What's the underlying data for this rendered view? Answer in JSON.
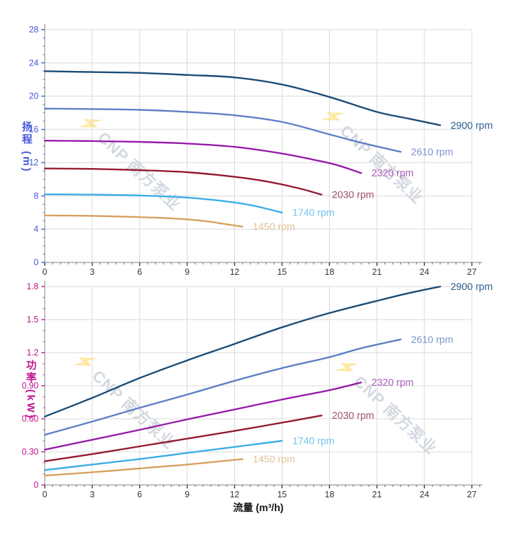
{
  "watermark": {
    "logo": "⚡",
    "text": "CNP 南方泵业",
    "color": "rgba(150,164,184,0.42)"
  },
  "chart_data": [
    {
      "type": "line",
      "title": "",
      "xlabel": "",
      "ylabel": "扬程 (m)",
      "xlim": [
        0,
        27
      ],
      "ylim": [
        0,
        28
      ],
      "xticks": [
        0,
        3,
        6,
        9,
        12,
        15,
        18,
        21,
        24,
        27
      ],
      "xtick_labels": [
        "0",
        "3",
        "6",
        "9",
        "12",
        "15",
        "18",
        "21",
        "24",
        "27"
      ],
      "yticks": [
        0,
        4,
        8,
        12,
        16,
        20,
        24,
        28
      ],
      "ytick_labels": [
        "0",
        "4",
        "8",
        "12",
        "16",
        "20",
        "24",
        "28"
      ],
      "x_minor_step": 0.5,
      "y_minor_step": 1,
      "axis_color": "#4456d8",
      "xtick_color": "#333333",
      "grid_color": "#d8d8d8",
      "grid": true,
      "legend_position": "at-line-end",
      "series": [
        {
          "name": "2900 rpm",
          "color": "#1a4a75",
          "label_color": "#2f5f8f",
          "x": [
            0,
            3,
            6,
            9,
            12,
            15,
            18,
            21,
            23,
            25
          ],
          "y": [
            23.0,
            22.9,
            22.8,
            22.55,
            22.25,
            21.4,
            19.9,
            18.1,
            17.3,
            16.5
          ]
        },
        {
          "name": "2610 rpm",
          "color": "#5d7ec5",
          "label_color": "#7e97cf",
          "x": [
            0,
            3,
            6,
            9,
            12,
            15,
            18,
            20,
            22.5
          ],
          "y": [
            18.5,
            18.45,
            18.35,
            18.1,
            17.7,
            16.9,
            15.4,
            14.4,
            13.3
          ]
        },
        {
          "name": "2320 rpm",
          "color": "#951ba8",
          "label_color": "#a85cba",
          "x": [
            0,
            3,
            6,
            9,
            12,
            15,
            17,
            18.5,
            20
          ],
          "y": [
            14.65,
            14.6,
            14.5,
            14.3,
            13.9,
            13.1,
            12.35,
            11.7,
            10.75
          ]
        },
        {
          "name": "2030 rpm",
          "color": "#94182f",
          "label_color": "#a25568",
          "x": [
            0,
            3,
            6,
            9,
            12,
            14,
            16,
            17.5
          ],
          "y": [
            11.3,
            11.25,
            11.1,
            10.85,
            10.3,
            9.75,
            8.95,
            8.15
          ]
        },
        {
          "name": "1740 rpm",
          "color": "#39ade6",
          "label_color": "#74c4ed",
          "x": [
            0,
            3,
            6,
            9,
            11,
            13,
            15
          ],
          "y": [
            8.2,
            8.15,
            8.05,
            7.8,
            7.45,
            6.9,
            6.0
          ]
        },
        {
          "name": "1450 rpm",
          "color": "#d79f5b",
          "label_color": "#e3c193",
          "x": [
            0,
            3,
            6,
            8,
            10,
            12.5
          ],
          "y": [
            5.65,
            5.6,
            5.45,
            5.3,
            5.0,
            4.3
          ]
        }
      ]
    },
    {
      "type": "line",
      "title": "",
      "xlabel": "流量 (m³/h)",
      "ylabel": "功率 (kW)",
      "xlim": [
        0,
        27
      ],
      "ylim": [
        0,
        1.8
      ],
      "xticks": [
        0,
        3,
        6,
        9,
        12,
        15,
        18,
        21,
        24,
        27
      ],
      "xtick_labels": [
        "0",
        "3",
        "6",
        "9",
        "12",
        "15",
        "18",
        "21",
        "24",
        "27"
      ],
      "yticks": [
        0,
        0.3,
        0.6,
        0.9,
        1.2,
        1.5,
        1.8
      ],
      "ytick_labels": [
        "0",
        "0.30",
        "0.60",
        "0.90",
        "1.2",
        "1.5",
        "1.8"
      ],
      "x_minor_step": 0.5,
      "y_minor_step": 0.1,
      "axis_color": "#c2138f",
      "xtick_color": "#333333",
      "grid_color": "#d8d8d8",
      "grid": true,
      "legend_position": "at-line-end",
      "series": [
        {
          "name": "2900 rpm",
          "color": "#1a4a75",
          "label_color": "#2f5f8f",
          "x": [
            0,
            3,
            6,
            9,
            12,
            15,
            18,
            21,
            23,
            25
          ],
          "y": [
            0.62,
            0.79,
            0.97,
            1.13,
            1.28,
            1.43,
            1.56,
            1.67,
            1.74,
            1.8
          ]
        },
        {
          "name": "2610 rpm",
          "color": "#5d7ec5",
          "label_color": "#7e97cf",
          "x": [
            0,
            3,
            6,
            9,
            12,
            15,
            18,
            20,
            22.5
          ],
          "y": [
            0.455,
            0.575,
            0.7,
            0.82,
            0.945,
            1.06,
            1.16,
            1.24,
            1.32
          ]
        },
        {
          "name": "2320 rpm",
          "color": "#951ba8",
          "label_color": "#a85cba",
          "x": [
            0,
            3,
            6,
            9,
            12,
            15,
            18,
            20
          ],
          "y": [
            0.32,
            0.41,
            0.5,
            0.595,
            0.685,
            0.775,
            0.86,
            0.93
          ]
        },
        {
          "name": "2030 rpm",
          "color": "#94182f",
          "label_color": "#a25568",
          "x": [
            0,
            3,
            6,
            9,
            12,
            15,
            17.5
          ],
          "y": [
            0.215,
            0.28,
            0.35,
            0.42,
            0.49,
            0.565,
            0.63
          ]
        },
        {
          "name": "1740 rpm",
          "color": "#39ade6",
          "label_color": "#74c4ed",
          "x": [
            0,
            3,
            6,
            9,
            12,
            15
          ],
          "y": [
            0.135,
            0.185,
            0.235,
            0.29,
            0.345,
            0.4
          ]
        },
        {
          "name": "1450 rpm",
          "color": "#d79f5b",
          "label_color": "#e3c193",
          "x": [
            0,
            3,
            6,
            9,
            12.5
          ],
          "y": [
            0.085,
            0.115,
            0.15,
            0.185,
            0.235
          ]
        }
      ]
    }
  ]
}
